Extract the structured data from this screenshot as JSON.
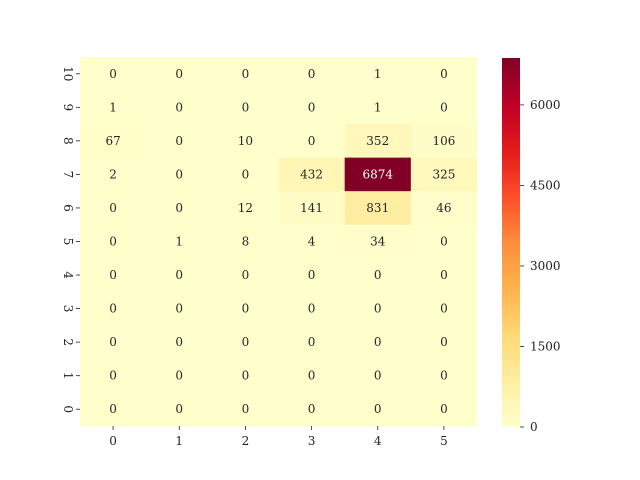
{
  "chart_data": {
    "type": "heatmap",
    "title": "",
    "xlabel": "",
    "ylabel": "",
    "x_categories": [
      "0",
      "1",
      "2",
      "3",
      "4",
      "5"
    ],
    "y_categories": [
      "10",
      "9",
      "8",
      "7",
      "6",
      "5",
      "4",
      "3",
      "2",
      "1",
      "0"
    ],
    "values": [
      [
        0,
        0,
        0,
        0,
        1,
        0
      ],
      [
        1,
        0,
        0,
        0,
        1,
        0
      ],
      [
        67,
        0,
        10,
        0,
        352,
        106
      ],
      [
        2,
        0,
        0,
        432,
        6874,
        325
      ],
      [
        0,
        0,
        12,
        141,
        831,
        46
      ],
      [
        0,
        1,
        8,
        4,
        34,
        0
      ],
      [
        0,
        0,
        0,
        0,
        0,
        0
      ],
      [
        0,
        0,
        0,
        0,
        0,
        0
      ],
      [
        0,
        0,
        0,
        0,
        0,
        0
      ],
      [
        0,
        0,
        0,
        0,
        0,
        0
      ],
      [
        0,
        0,
        0,
        0,
        0,
        0
      ]
    ],
    "colormap": "YlOrRd",
    "color_range": [
      0,
      6874
    ],
    "colorbar_ticks": [
      "0",
      "1500",
      "3000",
      "4500",
      "6000"
    ],
    "colorbar_tick_values": [
      0,
      1500,
      3000,
      4500,
      6000
    ],
    "annotations": true,
    "grid": false,
    "legend": "right colorbar"
  }
}
